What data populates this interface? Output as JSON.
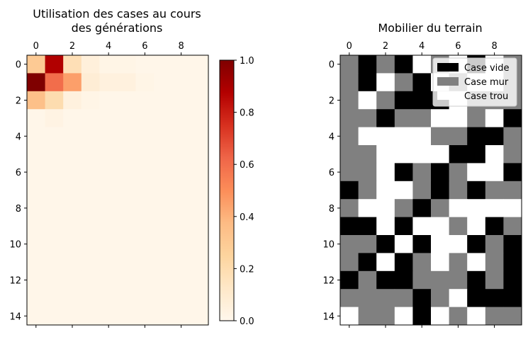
{
  "chart_data": [
    {
      "type": "heatmap",
      "title_lines": [
        "Utilisation des cases au cours",
        "des générations"
      ],
      "colormap": "OrRd",
      "x_ticks": [
        0,
        2,
        4,
        6,
        8
      ],
      "y_ticks": [
        0,
        2,
        4,
        6,
        8,
        10,
        12,
        14
      ],
      "x_axis_position": "top",
      "colorbar": {
        "min": 0.0,
        "max": 1.0,
        "ticks": [
          "0.0",
          "0.2",
          "0.4",
          "0.6",
          "0.8",
          "1.0"
        ]
      },
      "grid": false,
      "values": [
        [
          0.3,
          0.88,
          0.18,
          0.06,
          0.02,
          0.02,
          0.01,
          0.01,
          0.01,
          0.01
        ],
        [
          1.0,
          0.6,
          0.45,
          0.08,
          0.05,
          0.05,
          0.02,
          0.01,
          0.01,
          0.01
        ],
        [
          0.35,
          0.2,
          0.05,
          0.02,
          0.01,
          0.01,
          0.01,
          0.01,
          0.01,
          0.01
        ],
        [
          0.01,
          0.03,
          0.01,
          0.01,
          0.01,
          0.01,
          0.01,
          0.01,
          0.01,
          0.01
        ],
        [
          0.01,
          0.01,
          0.01,
          0.01,
          0.01,
          0.01,
          0.01,
          0.01,
          0.01,
          0.01
        ],
        [
          0.01,
          0.01,
          0.01,
          0.01,
          0.01,
          0.01,
          0.01,
          0.01,
          0.01,
          0.01
        ],
        [
          0.01,
          0.01,
          0.01,
          0.01,
          0.01,
          0.01,
          0.01,
          0.01,
          0.01,
          0.01
        ],
        [
          0.01,
          0.01,
          0.01,
          0.01,
          0.01,
          0.01,
          0.01,
          0.01,
          0.01,
          0.01
        ],
        [
          0.01,
          0.01,
          0.01,
          0.01,
          0.01,
          0.01,
          0.01,
          0.01,
          0.01,
          0.01
        ],
        [
          0.01,
          0.01,
          0.01,
          0.01,
          0.01,
          0.01,
          0.01,
          0.01,
          0.01,
          0.01
        ],
        [
          0.01,
          0.01,
          0.01,
          0.01,
          0.01,
          0.01,
          0.01,
          0.01,
          0.01,
          0.01
        ],
        [
          0.01,
          0.01,
          0.01,
          0.01,
          0.01,
          0.01,
          0.01,
          0.01,
          0.01,
          0.01
        ],
        [
          0.01,
          0.01,
          0.01,
          0.01,
          0.01,
          0.01,
          0.01,
          0.01,
          0.01,
          0.01
        ],
        [
          0.01,
          0.01,
          0.01,
          0.01,
          0.01,
          0.01,
          0.01,
          0.01,
          0.01,
          0.01
        ],
        [
          0.01,
          0.01,
          0.01,
          0.01,
          0.01,
          0.01,
          0.01,
          0.01,
          0.01,
          0.01
        ]
      ]
    },
    {
      "type": "heatmap",
      "title": "Mobilier du terrain",
      "x_ticks": [
        0,
        2,
        4,
        6,
        8
      ],
      "y_ticks": [
        0,
        2,
        4,
        6,
        8,
        10,
        12,
        14
      ],
      "x_axis_position": "top",
      "legend": [
        {
          "label": "Case vide",
          "color": "#000000",
          "code": 0
        },
        {
          "label": "Case mur",
          "color": "#808080",
          "code": 1
        },
        {
          "label": "Case trou",
          "color": "#ffffff",
          "code": 2
        }
      ],
      "legend_position": "upper right",
      "grid": false,
      "cells": [
        [
          1,
          0,
          1,
          0,
          2,
          1,
          2,
          0,
          2,
          1
        ],
        [
          1,
          0,
          2,
          1,
          0,
          2,
          1,
          2,
          2,
          1
        ],
        [
          1,
          2,
          1,
          0,
          0,
          0,
          2,
          1,
          1,
          1
        ],
        [
          1,
          1,
          0,
          1,
          1,
          2,
          2,
          1,
          2,
          0
        ],
        [
          1,
          2,
          2,
          2,
          2,
          1,
          1,
          0,
          0,
          1
        ],
        [
          1,
          1,
          2,
          2,
          2,
          2,
          0,
          0,
          2,
          1
        ],
        [
          1,
          1,
          2,
          0,
          1,
          0,
          1,
          2,
          2,
          0
        ],
        [
          0,
          1,
          2,
          2,
          1,
          0,
          1,
          0,
          1,
          1
        ],
        [
          1,
          2,
          2,
          1,
          0,
          1,
          2,
          2,
          2,
          2
        ],
        [
          0,
          0,
          2,
          0,
          2,
          2,
          1,
          2,
          0,
          1
        ],
        [
          1,
          1,
          0,
          2,
          0,
          2,
          2,
          0,
          1,
          0
        ],
        [
          1,
          0,
          2,
          0,
          1,
          2,
          1,
          2,
          1,
          0
        ],
        [
          0,
          1,
          0,
          0,
          1,
          1,
          1,
          0,
          1,
          0
        ],
        [
          1,
          1,
          1,
          1,
          0,
          1,
          2,
          0,
          0,
          0
        ],
        [
          2,
          1,
          1,
          2,
          0,
          2,
          1,
          2,
          1,
          1
        ]
      ]
    }
  ]
}
